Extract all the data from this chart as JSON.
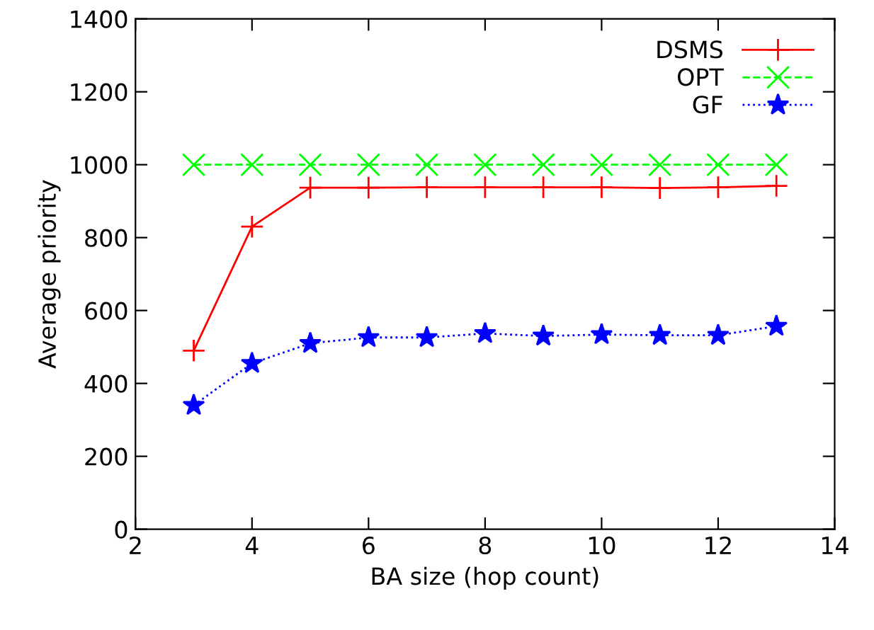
{
  "chart_data": {
    "type": "line",
    "xlabel": "BA size (hop count)",
    "ylabel": "Average priority",
    "x": [
      3,
      4,
      5,
      6,
      7,
      8,
      9,
      10,
      11,
      12,
      13
    ],
    "series": [
      {
        "name": "DSMS",
        "color": "#ff0000",
        "marker": "plus",
        "line_style": "solid",
        "values": [
          490,
          830,
          937,
          937,
          938,
          938,
          938,
          938,
          936,
          938,
          942
        ]
      },
      {
        "name": "OPT",
        "color": "#00ff00",
        "marker": "cross",
        "line_style": "dashed",
        "values": [
          1000,
          1000,
          1000,
          1000,
          1000,
          1000,
          1000,
          1000,
          1000,
          1000,
          1000
        ]
      },
      {
        "name": "GF",
        "color": "#0000ff",
        "marker": "star",
        "line_style": "dotted",
        "values": [
          340,
          455,
          510,
          526,
          526,
          537,
          530,
          534,
          532,
          532,
          557
        ]
      }
    ],
    "xlim": [
      2,
      14
    ],
    "xticks": [
      2,
      4,
      6,
      8,
      10,
      12,
      14
    ],
    "ylim": [
      0,
      1400
    ],
    "yticks": [
      0,
      200,
      400,
      600,
      800,
      1000,
      1200,
      1400
    ],
    "grid": false,
    "legend": "top right"
  }
}
